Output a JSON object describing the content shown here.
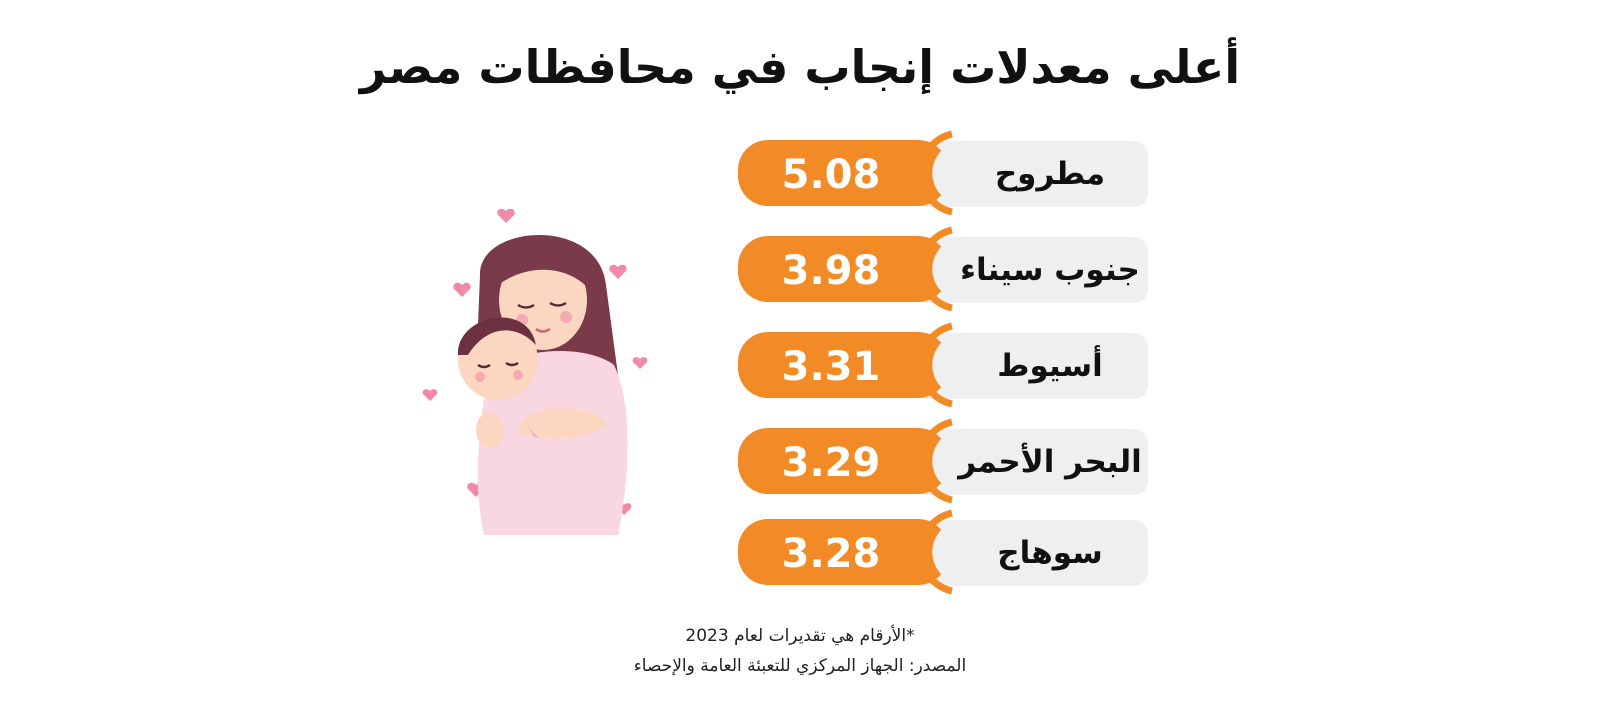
{
  "colors": {
    "accent": "#f28a26",
    "label_bg": "#efefef",
    "text": "#111111",
    "value_text": "#ffffff"
  },
  "chart_data": {
    "type": "bar",
    "title": "أعلى معدلات إنجاب في محافظات مصر",
    "categories": [
      "مطروح",
      "جنوب سيناء",
      "أسيوط",
      "البحر الأحمر",
      "سوهاج"
    ],
    "values": [
      5.08,
      3.98,
      3.31,
      3.29,
      3.28
    ],
    "value_labels": [
      "5.08",
      "3.98",
      "3.31",
      "3.29",
      "3.28"
    ],
    "xlabel": "",
    "ylabel": ""
  },
  "illustration": {
    "icon": "mother-holding-baby-icon"
  },
  "footnote": "*الأرقام هي تقديرات لعام 2023",
  "source": "المصدر: الجهاز المركزي للتعبئة العامة والإحصاء"
}
